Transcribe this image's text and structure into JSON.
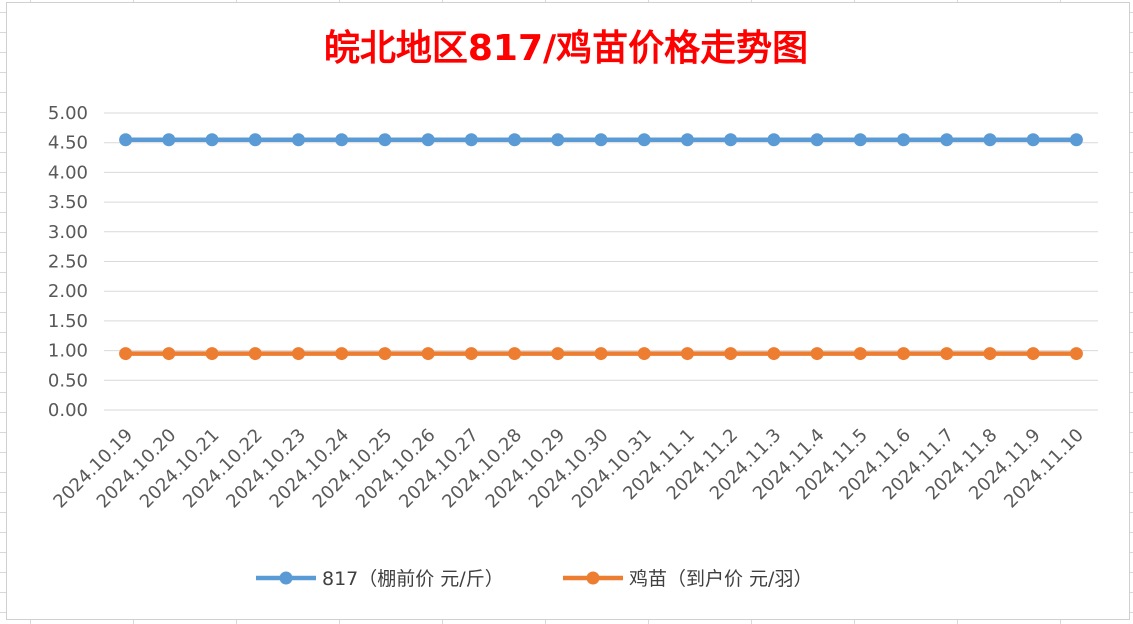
{
  "chart_data": {
    "type": "line",
    "title": "皖北地区817/鸡苗价格走势图",
    "title_color": "#ff0000",
    "categories": [
      "2024.10.19",
      "2024.10.20",
      "2024.10.21",
      "2024.10.22",
      "2024.10.23",
      "2024.10.24",
      "2024.10.25",
      "2024.10.26",
      "2024.10.27",
      "2024.10.28",
      "2024.10.29",
      "2024.10.30",
      "2024.10.31",
      "2024.11.1",
      "2024.11.2",
      "2024.11.3",
      "2024.11.4",
      "2024.11.5",
      "2024.11.6",
      "2024.11.7",
      "2024.11.8",
      "2024.11.9",
      "2024.11.10"
    ],
    "series": [
      {
        "name": "817（棚前价 元/斤）",
        "color": "#5b9bd5",
        "values": [
          4.55,
          4.55,
          4.55,
          4.55,
          4.55,
          4.55,
          4.55,
          4.55,
          4.55,
          4.55,
          4.55,
          4.55,
          4.55,
          4.55,
          4.55,
          4.55,
          4.55,
          4.55,
          4.55,
          4.55,
          4.55,
          4.55,
          4.55
        ]
      },
      {
        "name": "鸡苗（到户价 元/羽）",
        "color": "#ed7d31",
        "values": [
          0.95,
          0.95,
          0.95,
          0.95,
          0.95,
          0.95,
          0.95,
          0.95,
          0.95,
          0.95,
          0.95,
          0.95,
          0.95,
          0.95,
          0.95,
          0.95,
          0.95,
          0.95,
          0.95,
          0.95,
          0.95,
          0.95,
          0.95
        ]
      }
    ],
    "ylim": [
      0,
      5
    ],
    "yticks": [
      "0.00",
      "0.50",
      "1.00",
      "1.50",
      "2.00",
      "2.50",
      "3.00",
      "3.50",
      "4.00",
      "4.50",
      "5.00"
    ],
    "grid": true,
    "legend": "bottom"
  }
}
